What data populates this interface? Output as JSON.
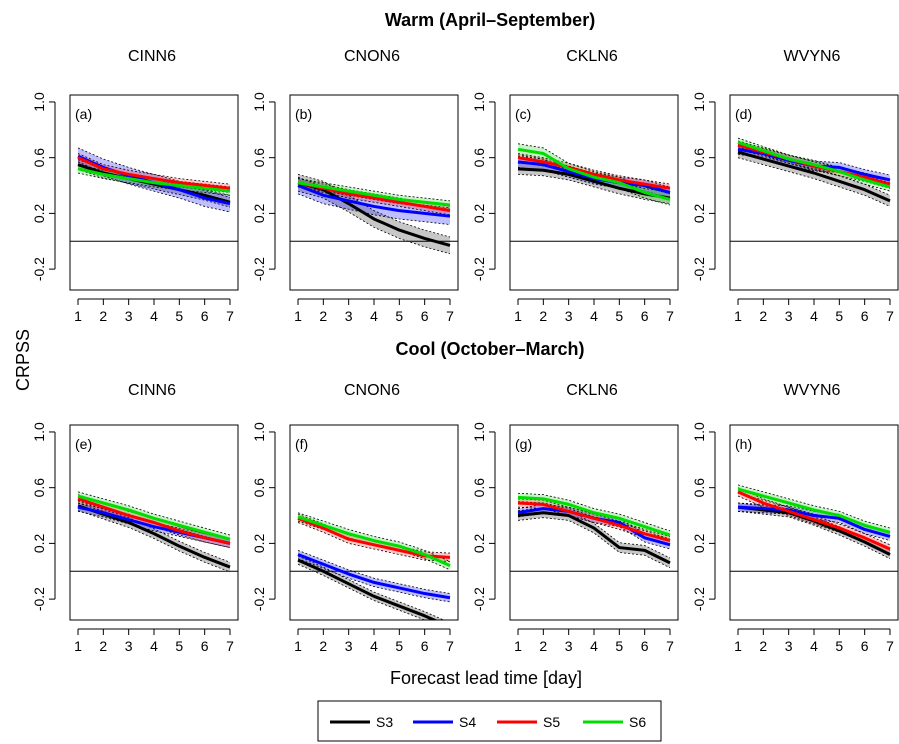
{
  "figure": {
    "warm_title": "Warm (April–September)",
    "cool_title": "Cool (October–March)",
    "ylabel": "CRPSS",
    "xlabel": "Forecast lead time [day]"
  },
  "legend": [
    {
      "name": "S3",
      "color": "#000000"
    },
    {
      "name": "S4",
      "color": "#0000ff"
    },
    {
      "name": "S5",
      "color": "#ff0000"
    },
    {
      "name": "S6",
      "color": "#00dd00"
    }
  ],
  "chart_data": [
    {
      "type": "line",
      "panel": "(a)",
      "title": "CINN6",
      "season": "Warm",
      "x": [
        1,
        2,
        3,
        4,
        5,
        6,
        7
      ],
      "ylim": [
        -0.35,
        1.05
      ],
      "yticks": [
        "-0.2",
        "0.2",
        "0.6",
        "1.0"
      ],
      "series": [
        {
          "name": "S3",
          "values": [
            0.55,
            0.49,
            0.45,
            0.41,
            0.37,
            0.33,
            0.28
          ],
          "band": 0.035
        },
        {
          "name": "S4",
          "values": [
            0.61,
            0.53,
            0.47,
            0.42,
            0.37,
            0.31,
            0.27
          ],
          "band": 0.06
        },
        {
          "name": "S5",
          "values": [
            0.6,
            0.52,
            0.48,
            0.45,
            0.42,
            0.4,
            0.38
          ],
          "band": 0.03
        },
        {
          "name": "S6",
          "values": [
            0.52,
            0.48,
            0.45,
            0.42,
            0.4,
            0.38,
            0.36
          ],
          "band": 0.03
        }
      ]
    },
    {
      "type": "line",
      "panel": "(b)",
      "title": "CNON6",
      "season": "Warm",
      "x": [
        1,
        2,
        3,
        4,
        5,
        6,
        7
      ],
      "ylim": [
        -0.35,
        1.05
      ],
      "yticks": [
        "-0.2",
        "0.2",
        "0.6",
        "1.0"
      ],
      "series": [
        {
          "name": "S3",
          "values": [
            0.42,
            0.37,
            0.27,
            0.16,
            0.08,
            0.02,
            -0.03
          ],
          "band": 0.06
        },
        {
          "name": "S4",
          "values": [
            0.4,
            0.33,
            0.29,
            0.25,
            0.22,
            0.2,
            0.18
          ],
          "band": 0.06
        },
        {
          "name": "S5",
          "values": [
            0.42,
            0.38,
            0.34,
            0.31,
            0.28,
            0.25,
            0.22
          ],
          "band": 0.03
        },
        {
          "name": "S6",
          "values": [
            0.42,
            0.39,
            0.36,
            0.33,
            0.3,
            0.28,
            0.26
          ],
          "band": 0.03
        }
      ]
    },
    {
      "type": "line",
      "panel": "(c)",
      "title": "CKLN6",
      "season": "Warm",
      "x": [
        1,
        2,
        3,
        4,
        5,
        6,
        7
      ],
      "ylim": [
        -0.35,
        1.05
      ],
      "yticks": [
        "-0.2",
        "0.2",
        "0.6",
        "1.0"
      ],
      "series": [
        {
          "name": "S3",
          "values": [
            0.52,
            0.51,
            0.48,
            0.43,
            0.38,
            0.34,
            0.31
          ],
          "band": 0.04
        },
        {
          "name": "S4",
          "values": [
            0.57,
            0.55,
            0.5,
            0.45,
            0.42,
            0.4,
            0.35
          ],
          "band": 0.04
        },
        {
          "name": "S5",
          "values": [
            0.6,
            0.57,
            0.53,
            0.48,
            0.44,
            0.41,
            0.38
          ],
          "band": 0.03
        },
        {
          "name": "S6",
          "values": [
            0.66,
            0.63,
            0.52,
            0.46,
            0.42,
            0.35,
            0.3
          ],
          "band": 0.04
        }
      ]
    },
    {
      "type": "line",
      "panel": "(d)",
      "title": "WVYN6",
      "season": "Warm",
      "x": [
        1,
        2,
        3,
        4,
        5,
        6,
        7
      ],
      "ylim": [
        -0.35,
        1.05
      ],
      "yticks": [
        "-0.2",
        "0.2",
        "0.6",
        "1.0"
      ],
      "series": [
        {
          "name": "S3",
          "values": [
            0.64,
            0.59,
            0.54,
            0.49,
            0.43,
            0.37,
            0.29
          ],
          "band": 0.04
        },
        {
          "name": "S4",
          "values": [
            0.66,
            0.63,
            0.58,
            0.54,
            0.53,
            0.48,
            0.44
          ],
          "band": 0.035
        },
        {
          "name": "S5",
          "values": [
            0.69,
            0.64,
            0.59,
            0.54,
            0.5,
            0.46,
            0.41
          ],
          "band": 0.03
        },
        {
          "name": "S6",
          "values": [
            0.71,
            0.65,
            0.59,
            0.55,
            0.5,
            0.44,
            0.39
          ],
          "band": 0.03
        }
      ]
    },
    {
      "type": "line",
      "panel": "(e)",
      "title": "CINN6",
      "season": "Cool",
      "x": [
        1,
        2,
        3,
        4,
        5,
        6,
        7
      ],
      "ylim": [
        -0.35,
        1.05
      ],
      "yticks": [
        "-0.2",
        "0.2",
        "0.6",
        "1.0"
      ],
      "series": [
        {
          "name": "S3",
          "values": [
            0.47,
            0.41,
            0.35,
            0.27,
            0.18,
            0.1,
            0.03
          ],
          "band": 0.035
        },
        {
          "name": "S4",
          "values": [
            0.46,
            0.42,
            0.37,
            0.32,
            0.28,
            0.24,
            0.2
          ],
          "band": 0.03
        },
        {
          "name": "S5",
          "values": [
            0.52,
            0.46,
            0.4,
            0.35,
            0.29,
            0.24,
            0.2
          ],
          "band": 0.03
        },
        {
          "name": "S6",
          "values": [
            0.54,
            0.49,
            0.44,
            0.38,
            0.33,
            0.28,
            0.23
          ],
          "band": 0.03
        }
      ]
    },
    {
      "type": "line",
      "panel": "(f)",
      "title": "CNON6",
      "season": "Cool",
      "x": [
        1,
        2,
        3,
        4,
        5,
        6,
        7
      ],
      "ylim": [
        -0.35,
        1.05
      ],
      "yticks": [
        "-0.2",
        "0.2",
        "0.6",
        "1.0"
      ],
      "series": [
        {
          "name": "S3",
          "values": [
            0.08,
            0.0,
            -0.09,
            -0.18,
            -0.25,
            -0.32,
            -0.4
          ],
          "band": 0.03
        },
        {
          "name": "S4",
          "values": [
            0.12,
            0.05,
            -0.02,
            -0.08,
            -0.12,
            -0.16,
            -0.19
          ],
          "band": 0.03
        },
        {
          "name": "S5",
          "values": [
            0.38,
            0.31,
            0.23,
            0.19,
            0.15,
            0.11,
            0.1
          ],
          "band": 0.03
        },
        {
          "name": "S6",
          "values": [
            0.39,
            0.33,
            0.27,
            0.22,
            0.18,
            0.12,
            0.04
          ],
          "band": 0.03
        }
      ]
    },
    {
      "type": "line",
      "panel": "(g)",
      "title": "CKLN6",
      "season": "Cool",
      "x": [
        1,
        2,
        3,
        4,
        5,
        6,
        7
      ],
      "ylim": [
        -0.35,
        1.05
      ],
      "yticks": [
        "-0.2",
        "0.2",
        "0.6",
        "1.0"
      ],
      "series": [
        {
          "name": "S3",
          "values": [
            0.4,
            0.42,
            0.4,
            0.31,
            0.17,
            0.15,
            0.06
          ],
          "band": 0.035
        },
        {
          "name": "S4",
          "values": [
            0.42,
            0.45,
            0.43,
            0.38,
            0.35,
            0.24,
            0.19
          ],
          "band": 0.03
        },
        {
          "name": "S5",
          "values": [
            0.49,
            0.48,
            0.43,
            0.38,
            0.33,
            0.27,
            0.22
          ],
          "band": 0.03
        },
        {
          "name": "S6",
          "values": [
            0.53,
            0.52,
            0.48,
            0.42,
            0.38,
            0.32,
            0.26
          ],
          "band": 0.03
        }
      ]
    },
    {
      "type": "line",
      "panel": "(h)",
      "title": "WVYN6",
      "season": "Cool",
      "x": [
        1,
        2,
        3,
        4,
        5,
        6,
        7
      ],
      "ylim": [
        -0.35,
        1.05
      ],
      "yticks": [
        "-0.2",
        "0.2",
        "0.6",
        "1.0"
      ],
      "series": [
        {
          "name": "S3",
          "values": [
            0.46,
            0.44,
            0.42,
            0.36,
            0.29,
            0.21,
            0.12
          ],
          "band": 0.03
        },
        {
          "name": "S4",
          "values": [
            0.46,
            0.45,
            0.44,
            0.4,
            0.38,
            0.3,
            0.25
          ],
          "band": 0.03
        },
        {
          "name": "S5",
          "values": [
            0.57,
            0.49,
            0.43,
            0.37,
            0.31,
            0.24,
            0.16
          ],
          "band": 0.03
        },
        {
          "name": "S6",
          "values": [
            0.59,
            0.54,
            0.49,
            0.44,
            0.4,
            0.33,
            0.28
          ],
          "band": 0.03
        }
      ]
    }
  ]
}
